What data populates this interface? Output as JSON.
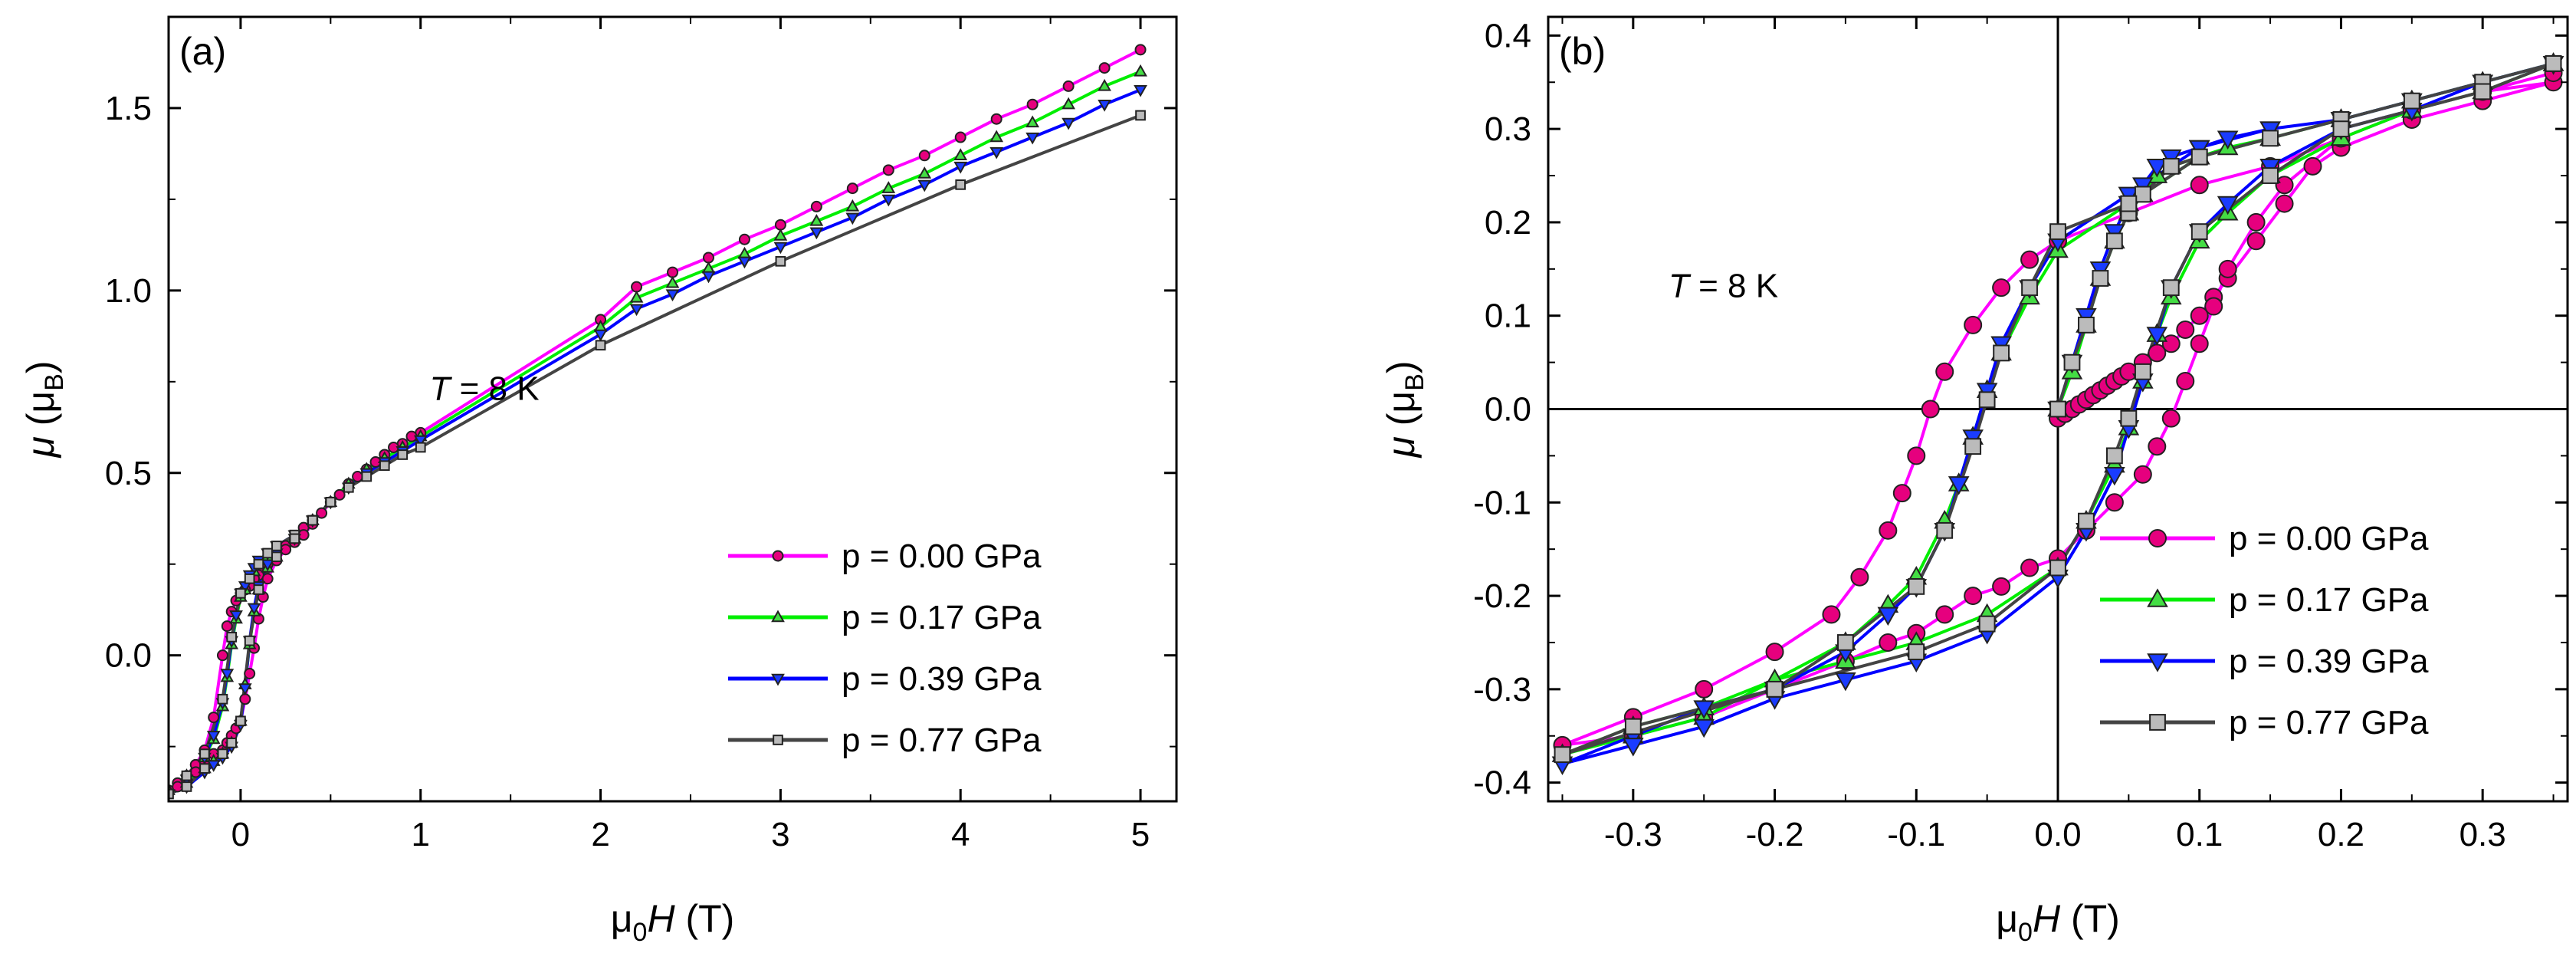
{
  "chart_data": [
    {
      "panel_label": "(a)",
      "type": "line",
      "xlabel": {
        "pre": "μ",
        "sub": "0",
        "ital": "H",
        "post": " (T)"
      },
      "ylabel": {
        "ital": "μ",
        "pre": " (μ",
        "sub": "B",
        "post": ")"
      },
      "xlim": [
        -0.4,
        5.2
      ],
      "ylim": [
        -0.4,
        1.75
      ],
      "xticks": [
        0,
        1,
        2,
        3,
        4,
        5
      ],
      "yticks": [
        0.0,
        0.5,
        1.0,
        1.5
      ],
      "ytick_labels": [
        "0.0",
        "0.5",
        "1.0",
        "1.5"
      ],
      "annotation": {
        "ital": "T",
        "rest": " = 8 K",
        "at": [
          1.05,
          0.7
        ]
      },
      "legend": [
        "p = 0.00 GPa",
        "p = 0.17 GPa",
        "p = 0.39 GPa",
        "p = 0.77 GPa"
      ],
      "series": [
        {
          "name": "p = 0.00 GPa",
          "color": "#ff00ff",
          "marker_fill": "#e6007e",
          "marker": "circle",
          "x": [
            5,
            4.8,
            4.6,
            4.4,
            4.2,
            4,
            3.8,
            3.6,
            3.4,
            3.2,
            3,
            2.8,
            2.6,
            2.4,
            2.2,
            2,
            1,
            0.95,
            0.9,
            0.85,
            0.8,
            0.75,
            0.7,
            0.65,
            0.6,
            0.55,
            0.5,
            0.45,
            0.4,
            0.35,
            0.3,
            0.25,
            0.2,
            0.175,
            0.15,
            0.125,
            0.1,
            0.075,
            0.05,
            0.025,
            0,
            -0.025,
            -0.05,
            -0.075,
            -0.1,
            -0.15,
            -0.2,
            -0.25,
            -0.3,
            -0.35,
            -0.4,
            -0.35,
            -0.3,
            -0.25,
            -0.2,
            -0.15,
            -0.1,
            -0.075,
            -0.05,
            -0.025,
            0,
            0.025,
            0.05,
            0.075,
            0.1,
            0.125,
            0.15,
            0.2,
            0.25,
            0.3,
            0.35,
            0.4
          ],
          "y": [
            1.66,
            1.61,
            1.56,
            1.51,
            1.47,
            1.42,
            1.37,
            1.33,
            1.28,
            1.23,
            1.18,
            1.14,
            1.09,
            1.05,
            1.01,
            0.92,
            0.61,
            0.6,
            0.58,
            0.57,
            0.55,
            0.53,
            0.51,
            0.49,
            0.47,
            0.44,
            0.42,
            0.39,
            0.37,
            0.35,
            0.32,
            0.3,
            0.28,
            0.27,
            0.25,
            0.24,
            0.22,
            0.21,
            0.19,
            0.18,
            0.17,
            0.15,
            0.12,
            0.08,
            0.0,
            -0.17,
            -0.26,
            -0.3,
            -0.33,
            -0.35,
            -0.37,
            -0.36,
            -0.35,
            -0.32,
            -0.29,
            -0.27,
            -0.26,
            -0.24,
            -0.22,
            -0.2,
            -0.18,
            -0.12,
            -0.05,
            0.02,
            0.1,
            0.16,
            0.21,
            0.26,
            0.29,
            0.31,
            0.33,
            0.36
          ]
        },
        {
          "name": "p = 0.17 GPa",
          "color": "#00ee00",
          "marker_fill": "#44dd44",
          "marker": "triangle-up",
          "x": [
            5,
            4.8,
            4.6,
            4.4,
            4.2,
            4,
            3.8,
            3.6,
            3.4,
            3.2,
            3,
            2.8,
            2.6,
            2.4,
            2.2,
            2,
            1,
            0.9,
            0.8,
            0.7,
            0.6,
            0.5,
            0.4,
            0.3,
            0.2,
            0.15,
            0.1,
            0.075,
            0.05,
            0.025,
            0,
            -0.025,
            -0.05,
            -0.075,
            -0.1,
            -0.15,
            -0.2,
            -0.3,
            -0.4,
            -0.3,
            -0.2,
            -0.15,
            -0.1,
            -0.05,
            0,
            0.025,
            0.05,
            0.075,
            0.1,
            0.15,
            0.2,
            0.3,
            0.4
          ],
          "y": [
            1.6,
            1.56,
            1.51,
            1.46,
            1.42,
            1.37,
            1.32,
            1.28,
            1.23,
            1.19,
            1.15,
            1.1,
            1.06,
            1.02,
            0.98,
            0.9,
            0.6,
            0.57,
            0.54,
            0.51,
            0.47,
            0.42,
            0.37,
            0.32,
            0.29,
            0.27,
            0.25,
            0.23,
            0.21,
            0.18,
            0.16,
            0.1,
            0.03,
            -0.06,
            -0.14,
            -0.23,
            -0.28,
            -0.33,
            -0.37,
            -0.35,
            -0.31,
            -0.29,
            -0.27,
            -0.24,
            -0.18,
            -0.08,
            0.03,
            0.12,
            0.18,
            0.24,
            0.27,
            0.32,
            0.37
          ]
        },
        {
          "name": "p = 0.39 GPa",
          "color": "#0000ff",
          "marker_fill": "#1a3cff",
          "marker": "triangle-down",
          "x": [
            5,
            4.8,
            4.6,
            4.4,
            4.2,
            4,
            3.8,
            3.6,
            3.4,
            3.2,
            3,
            2.8,
            2.6,
            2.4,
            2.2,
            2,
            1,
            0.9,
            0.8,
            0.7,
            0.6,
            0.5,
            0.4,
            0.3,
            0.2,
            0.15,
            0.1,
            0.075,
            0.05,
            0.025,
            0,
            -0.025,
            -0.05,
            -0.075,
            -0.1,
            -0.15,
            -0.2,
            -0.3,
            -0.4,
            -0.3,
            -0.2,
            -0.15,
            -0.1,
            -0.05,
            0,
            0.025,
            0.05,
            0.075,
            0.1,
            0.15,
            0.2,
            0.3,
            0.4
          ],
          "y": [
            1.55,
            1.51,
            1.46,
            1.42,
            1.38,
            1.34,
            1.29,
            1.25,
            1.2,
            1.16,
            1.12,
            1.08,
            1.04,
            0.99,
            0.95,
            0.88,
            0.59,
            0.56,
            0.53,
            0.5,
            0.46,
            0.42,
            0.37,
            0.33,
            0.3,
            0.28,
            0.26,
            0.24,
            0.22,
            0.19,
            0.17,
            0.11,
            0.04,
            -0.05,
            -0.13,
            -0.22,
            -0.28,
            -0.34,
            -0.38,
            -0.36,
            -0.32,
            -0.3,
            -0.28,
            -0.25,
            -0.19,
            -0.09,
            0.04,
            0.13,
            0.19,
            0.25,
            0.28,
            0.32,
            0.37
          ]
        },
        {
          "name": "p = 0.77 GPa",
          "color": "#444444",
          "marker_fill": "#bbbbbb",
          "marker": "square",
          "x": [
            5,
            4,
            3,
            2,
            1,
            0.9,
            0.8,
            0.7,
            0.6,
            0.5,
            0.4,
            0.3,
            0.2,
            0.15,
            0.1,
            0.05,
            0,
            -0.05,
            -0.1,
            -0.2,
            -0.3,
            -0.4,
            -0.3,
            -0.2,
            -0.1,
            -0.05,
            0,
            0.05,
            0.1,
            0.2,
            0.3,
            0.4
          ],
          "y": [
            1.48,
            1.29,
            1.08,
            0.85,
            0.57,
            0.55,
            0.52,
            0.49,
            0.46,
            0.42,
            0.37,
            0.33,
            0.3,
            0.28,
            0.25,
            0.21,
            0.17,
            0.05,
            -0.12,
            -0.27,
            -0.33,
            -0.38,
            -0.36,
            -0.31,
            -0.27,
            -0.24,
            -0.18,
            0.04,
            0.18,
            0.27,
            0.32,
            0.37
          ]
        }
      ]
    },
    {
      "panel_label": "(b)",
      "type": "line",
      "xlabel": {
        "pre": "μ",
        "sub": "0",
        "ital": "H",
        "post": " (T)"
      },
      "ylabel": {
        "ital": "μ",
        "pre": " (μ",
        "sub": "B",
        "post": ")"
      },
      "xlim": [
        -0.36,
        0.36
      ],
      "ylim": [
        -0.42,
        0.42
      ],
      "xticks": [
        -0.3,
        -0.2,
        -0.1,
        0.0,
        0.1,
        0.2,
        0.3
      ],
      "xtick_labels": [
        "-0.3",
        "-0.2",
        "-0.1",
        "0.0",
        "0.1",
        "0.2",
        "0.3"
      ],
      "yticks": [
        -0.4,
        -0.3,
        -0.2,
        -0.1,
        0.0,
        0.1,
        0.2,
        0.3,
        0.4
      ],
      "ytick_labels": [
        "-0.4",
        "-0.3",
        "-0.2",
        "-0.1",
        "0.0",
        "0.1",
        "0.2",
        "0.3",
        "0.4"
      ],
      "zero_lines": true,
      "annotation": {
        "ital": "T",
        "rest": " = 8 K",
        "at": [
          -0.275,
          0.12
        ]
      },
      "legend": [
        "p = 0.00 GPa",
        "p = 0.17 GPa",
        "p = 0.39 GPa",
        "p = 0.77 GPa"
      ],
      "series": [
        {
          "name": "p = 0.00 GPa",
          "color": "#ff00ff",
          "marker_fill": "#e6007e",
          "marker": "circle",
          "x": [
            0.0,
            0.005,
            0.01,
            0.015,
            0.02,
            0.025,
            0.03,
            0.035,
            0.04,
            0.045,
            0.05,
            0.06,
            0.07,
            0.08,
            0.09,
            0.1,
            0.11,
            0.12,
            0.14,
            0.16,
            0.18,
            0.2,
            0.25,
            0.3,
            0.35,
            0.3,
            0.25,
            0.2,
            0.15,
            0.1,
            0.05,
            0.0,
            -0.02,
            -0.04,
            -0.06,
            -0.08,
            -0.09,
            -0.1,
            -0.11,
            -0.12,
            -0.14,
            -0.16,
            -0.2,
            -0.25,
            -0.3,
            -0.35,
            -0.3,
            -0.25,
            -0.2,
            -0.15,
            -0.12,
            -0.1,
            -0.08,
            -0.06,
            -0.04,
            -0.02,
            0.0,
            0.02,
            0.04,
            0.06,
            0.07,
            0.08,
            0.09,
            0.1,
            0.11,
            0.12,
            0.14,
            0.16,
            0.2,
            0.25,
            0.3,
            0.35
          ],
          "y": [
            -0.01,
            -0.005,
            0.0,
            0.005,
            0.01,
            0.015,
            0.02,
            0.025,
            0.03,
            0.035,
            0.04,
            0.05,
            0.06,
            0.07,
            0.085,
            0.1,
            0.12,
            0.14,
            0.18,
            0.22,
            0.26,
            0.28,
            0.31,
            0.33,
            0.35,
            0.34,
            0.32,
            0.29,
            0.26,
            0.24,
            0.21,
            0.18,
            0.16,
            0.13,
            0.09,
            0.04,
            0.0,
            -0.05,
            -0.09,
            -0.13,
            -0.18,
            -0.22,
            -0.26,
            -0.3,
            -0.33,
            -0.36,
            -0.35,
            -0.33,
            -0.3,
            -0.27,
            -0.25,
            -0.24,
            -0.22,
            -0.2,
            -0.19,
            -0.17,
            -0.16,
            -0.13,
            -0.1,
            -0.07,
            -0.04,
            -0.01,
            0.03,
            0.07,
            0.11,
            0.15,
            0.2,
            0.24,
            0.29,
            0.32,
            0.34,
            0.36
          ]
        },
        {
          "name": "p = 0.17 GPa",
          "color": "#00ee00",
          "marker_fill": "#44dd44",
          "marker": "triangle-up",
          "x": [
            0.0,
            0.01,
            0.02,
            0.03,
            0.04,
            0.05,
            0.06,
            0.07,
            0.08,
            0.1,
            0.12,
            0.15,
            0.2,
            0.25,
            0.3,
            0.35,
            0.3,
            0.25,
            0.2,
            0.15,
            0.1,
            0.05,
            0.0,
            -0.02,
            -0.04,
            -0.05,
            -0.06,
            -0.07,
            -0.08,
            -0.1,
            -0.12,
            -0.15,
            -0.2,
            -0.25,
            -0.3,
            -0.35,
            -0.3,
            -0.25,
            -0.2,
            -0.15,
            -0.1,
            -0.05,
            0.0,
            0.02,
            0.04,
            0.05,
            0.06,
            0.07,
            0.08,
            0.1,
            0.12,
            0.15,
            0.2,
            0.25,
            0.3,
            0.35
          ],
          "y": [
            0.0,
            0.04,
            0.09,
            0.14,
            0.18,
            0.21,
            0.23,
            0.25,
            0.26,
            0.27,
            0.28,
            0.29,
            0.31,
            0.33,
            0.35,
            0.37,
            0.35,
            0.33,
            0.31,
            0.29,
            0.27,
            0.22,
            0.17,
            0.12,
            0.06,
            0.02,
            -0.03,
            -0.08,
            -0.12,
            -0.18,
            -0.21,
            -0.25,
            -0.29,
            -0.32,
            -0.34,
            -0.37,
            -0.35,
            -0.33,
            -0.29,
            -0.27,
            -0.25,
            -0.22,
            -0.17,
            -0.12,
            -0.06,
            -0.02,
            0.03,
            0.08,
            0.12,
            0.18,
            0.21,
            0.25,
            0.29,
            0.32,
            0.34,
            0.37
          ]
        },
        {
          "name": "p = 0.39 GPa",
          "color": "#0000ff",
          "marker_fill": "#1a3cff",
          "marker": "triangle-down",
          "x": [
            0.0,
            0.01,
            0.02,
            0.03,
            0.04,
            0.05,
            0.06,
            0.07,
            0.08,
            0.1,
            0.12,
            0.15,
            0.2,
            0.25,
            0.3,
            0.35,
            0.3,
            0.25,
            0.2,
            0.15,
            0.1,
            0.05,
            0.0,
            -0.02,
            -0.04,
            -0.05,
            -0.06,
            -0.07,
            -0.08,
            -0.1,
            -0.12,
            -0.15,
            -0.2,
            -0.25,
            -0.3,
            -0.35,
            -0.3,
            -0.25,
            -0.2,
            -0.15,
            -0.1,
            -0.05,
            0.0,
            0.02,
            0.04,
            0.05,
            0.06,
            0.07,
            0.08,
            0.1,
            0.12,
            0.15,
            0.2,
            0.25,
            0.3,
            0.35
          ],
          "y": [
            0.0,
            0.05,
            0.1,
            0.15,
            0.19,
            0.22,
            0.24,
            0.26,
            0.27,
            0.28,
            0.29,
            0.3,
            0.31,
            0.33,
            0.35,
            0.37,
            0.35,
            0.33,
            0.31,
            0.3,
            0.28,
            0.23,
            0.18,
            0.13,
            0.07,
            0.02,
            -0.03,
            -0.08,
            -0.13,
            -0.19,
            -0.22,
            -0.26,
            -0.3,
            -0.32,
            -0.35,
            -0.38,
            -0.36,
            -0.34,
            -0.31,
            -0.29,
            -0.27,
            -0.24,
            -0.18,
            -0.13,
            -0.07,
            -0.02,
            0.03,
            0.08,
            0.13,
            0.19,
            0.22,
            0.26,
            0.3,
            0.32,
            0.35,
            0.37
          ]
        },
        {
          "name": "p = 0.77 GPa",
          "color": "#444444",
          "marker_fill": "#bbbbbb",
          "marker": "square",
          "x": [
            0.0,
            0.01,
            0.02,
            0.03,
            0.04,
            0.05,
            0.06,
            0.08,
            0.1,
            0.15,
            0.2,
            0.25,
            0.3,
            0.35,
            0.2,
            0.1,
            0.05,
            0.0,
            -0.02,
            -0.04,
            -0.05,
            -0.06,
            -0.08,
            -0.1,
            -0.15,
            -0.2,
            -0.3,
            -0.35,
            -0.2,
            -0.1,
            -0.05,
            0.0,
            0.02,
            0.04,
            0.05,
            0.06,
            0.08,
            0.1,
            0.15,
            0.2,
            0.3,
            0.35
          ],
          "y": [
            0.0,
            0.05,
            0.09,
            0.14,
            0.18,
            0.21,
            0.23,
            0.26,
            0.27,
            0.29,
            0.31,
            0.33,
            0.35,
            0.37,
            0.31,
            0.27,
            0.22,
            0.19,
            0.13,
            0.06,
            0.01,
            -0.04,
            -0.13,
            -0.19,
            -0.25,
            -0.3,
            -0.34,
            -0.37,
            -0.3,
            -0.26,
            -0.23,
            -0.17,
            -0.12,
            -0.05,
            -0.01,
            0.04,
            0.13,
            0.19,
            0.25,
            0.3,
            0.34,
            0.37
          ]
        }
      ]
    }
  ]
}
